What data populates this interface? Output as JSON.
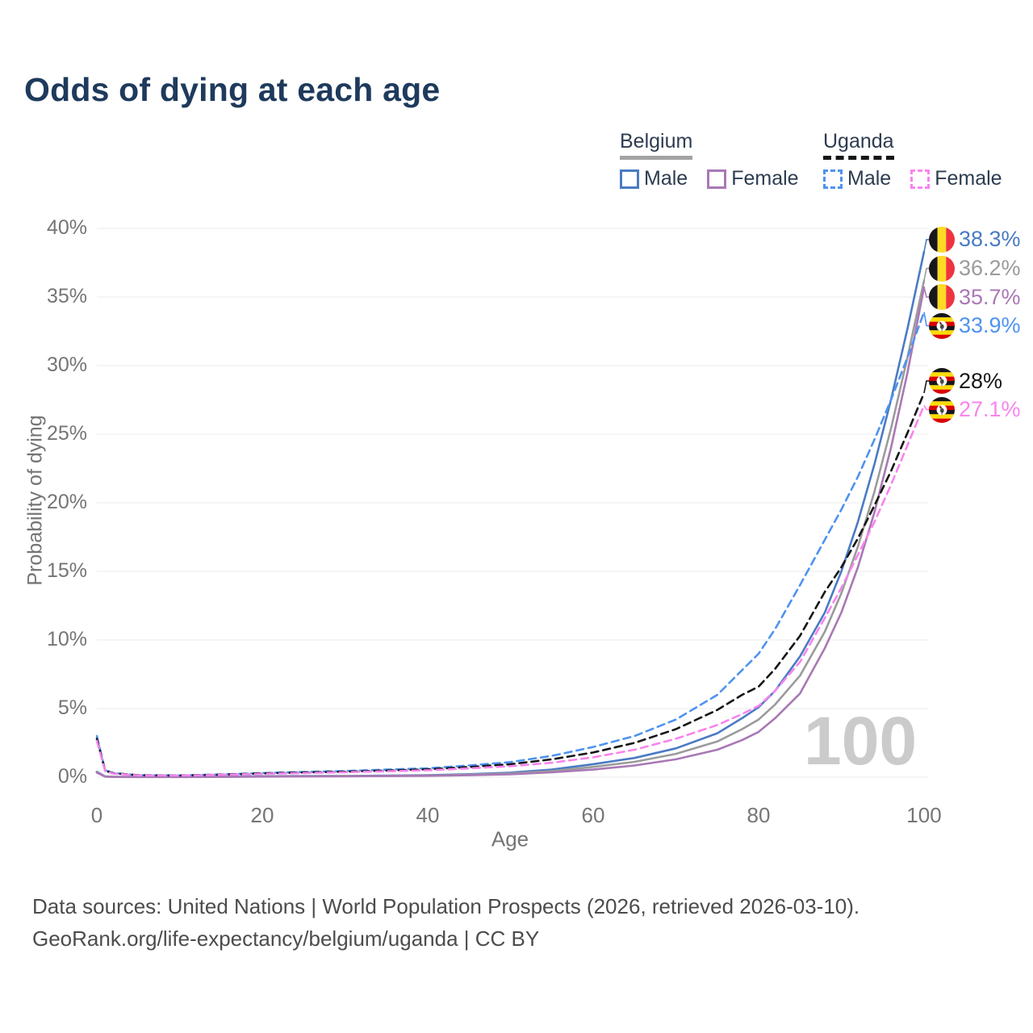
{
  "title": "Odds of dying at each age",
  "legend": {
    "groups": [
      {
        "country": "Belgium",
        "line_style": "solid",
        "line_color": "#a3a3a3",
        "items": [
          {
            "label": "Male",
            "series": "belgium-male"
          },
          {
            "label": "Female",
            "series": "belgium-female"
          }
        ]
      },
      {
        "country": "Uganda",
        "line_style": "dashed",
        "line_color": "#161616",
        "items": [
          {
            "label": "Male",
            "series": "uganda-male"
          },
          {
            "label": "Female",
            "series": "uganda-female"
          }
        ]
      }
    ]
  },
  "watermark": "100",
  "footer": {
    "line1": "Data sources: United Nations | World Population Prospects (2026, retrieved 2026-03-10).",
    "line2": "GeoRank.org/life-expectancy/belgium/uganda | CC BY"
  },
  "chart_data": {
    "type": "line",
    "title": "Odds of dying at each age",
    "xlabel": "Age",
    "ylabel": "Probability of dying",
    "xlim": [
      0,
      100
    ],
    "ylim_percent": [
      0,
      40
    ],
    "grid": true,
    "x_ticks": [
      {
        "label": "0",
        "value": 0
      },
      {
        "label": "20",
        "value": 20
      },
      {
        "label": "40",
        "value": 40
      },
      {
        "label": "60",
        "value": 60
      },
      {
        "label": "80",
        "value": 80
      },
      {
        "label": "100",
        "value": 100
      }
    ],
    "y_ticks": [
      {
        "label": "0%",
        "value": 0
      },
      {
        "label": "5%",
        "value": 5
      },
      {
        "label": "10%",
        "value": 10
      },
      {
        "label": "15%",
        "value": 15
      },
      {
        "label": "20%",
        "value": 20
      },
      {
        "label": "25%",
        "value": 25
      },
      {
        "label": "30%",
        "value": 30
      },
      {
        "label": "35%",
        "value": 35
      },
      {
        "label": "40%",
        "value": 40
      }
    ],
    "x": [
      0,
      1,
      2,
      5,
      10,
      15,
      20,
      25,
      30,
      35,
      40,
      45,
      50,
      55,
      60,
      65,
      70,
      75,
      78,
      80,
      82,
      85,
      88,
      90,
      92,
      94,
      96,
      98,
      100
    ],
    "series": [
      {
        "id": "belgium-male",
        "color": "#4a7bc4",
        "dash": "solid",
        "flag": "belgium",
        "end_label": "38.3%",
        "end_value": 38.3,
        "values": [
          0.4,
          0.05,
          0.03,
          0.02,
          0.02,
          0.04,
          0.07,
          0.08,
          0.09,
          0.11,
          0.15,
          0.22,
          0.33,
          0.55,
          0.95,
          1.4,
          2.1,
          3.2,
          4.3,
          5.1,
          6.3,
          8.8,
          12.0,
          15.0,
          18.6,
          22.8,
          27.5,
          32.7,
          38.3
        ]
      },
      {
        "id": "belgium-both",
        "color": "#9b9b9b",
        "dash": "solid",
        "flag": "belgium",
        "end_label": "36.2%",
        "end_value": 36.2,
        "values": [
          0.37,
          0.04,
          0.03,
          0.02,
          0.02,
          0.03,
          0.06,
          0.07,
          0.08,
          0.09,
          0.12,
          0.18,
          0.27,
          0.45,
          0.75,
          1.12,
          1.7,
          2.6,
          3.5,
          4.2,
          5.3,
          7.4,
          10.6,
          13.4,
          16.8,
          20.8,
          25.4,
          30.6,
          36.2
        ]
      },
      {
        "id": "belgium-female",
        "color": "#a978b5",
        "dash": "solid",
        "flag": "belgium",
        "end_label": "35.7%",
        "end_value": 35.7,
        "values": [
          0.33,
          0.04,
          0.02,
          0.01,
          0.01,
          0.02,
          0.04,
          0.05,
          0.06,
          0.08,
          0.1,
          0.14,
          0.21,
          0.35,
          0.55,
          0.85,
          1.3,
          2.0,
          2.7,
          3.3,
          4.3,
          6.1,
          9.4,
          12.0,
          15.3,
          19.3,
          24.0,
          29.5,
          35.7
        ]
      },
      {
        "id": "uganda-male",
        "color": "#4e93f0",
        "dash": "dashed",
        "flag": "uganda",
        "end_label": "33.9%",
        "end_value": 33.9,
        "values": [
          3.0,
          0.5,
          0.3,
          0.15,
          0.13,
          0.2,
          0.3,
          0.38,
          0.45,
          0.55,
          0.65,
          0.85,
          1.1,
          1.55,
          2.2,
          3.0,
          4.2,
          6.0,
          7.8,
          9.0,
          10.8,
          14.0,
          17.3,
          19.5,
          21.9,
          24.6,
          27.5,
          30.6,
          33.9
        ]
      },
      {
        "id": "uganda-both",
        "color": "#161616",
        "dash": "dashed",
        "flag": "uganda",
        "end_label": "28%",
        "end_value": 28.0,
        "values": [
          2.8,
          0.47,
          0.28,
          0.14,
          0.12,
          0.18,
          0.27,
          0.34,
          0.4,
          0.48,
          0.57,
          0.74,
          0.95,
          1.3,
          1.8,
          2.5,
          3.5,
          4.9,
          6.0,
          6.6,
          7.9,
          10.3,
          13.5,
          15.3,
          17.4,
          19.8,
          22.3,
          25.1,
          28.0
        ]
      },
      {
        "id": "uganda-female",
        "color": "#f884ee",
        "dash": "dashed",
        "flag": "uganda",
        "end_label": "27.1%",
        "end_value": 27.1,
        "values": [
          2.65,
          0.44,
          0.26,
          0.13,
          0.11,
          0.17,
          0.24,
          0.3,
          0.36,
          0.43,
          0.5,
          0.64,
          0.8,
          1.05,
          1.45,
          2.0,
          2.8,
          3.8,
          4.6,
          5.2,
          6.3,
          8.4,
          11.6,
          13.8,
          16.2,
          18.6,
          21.3,
          24.2,
          27.1
        ]
      }
    ],
    "flag_colors": {
      "belgium": [
        "#17161a",
        "#fdda24",
        "#ef3340"
      ],
      "uganda": [
        "#17161a",
        "#fcdc04",
        "#d90000"
      ]
    }
  }
}
